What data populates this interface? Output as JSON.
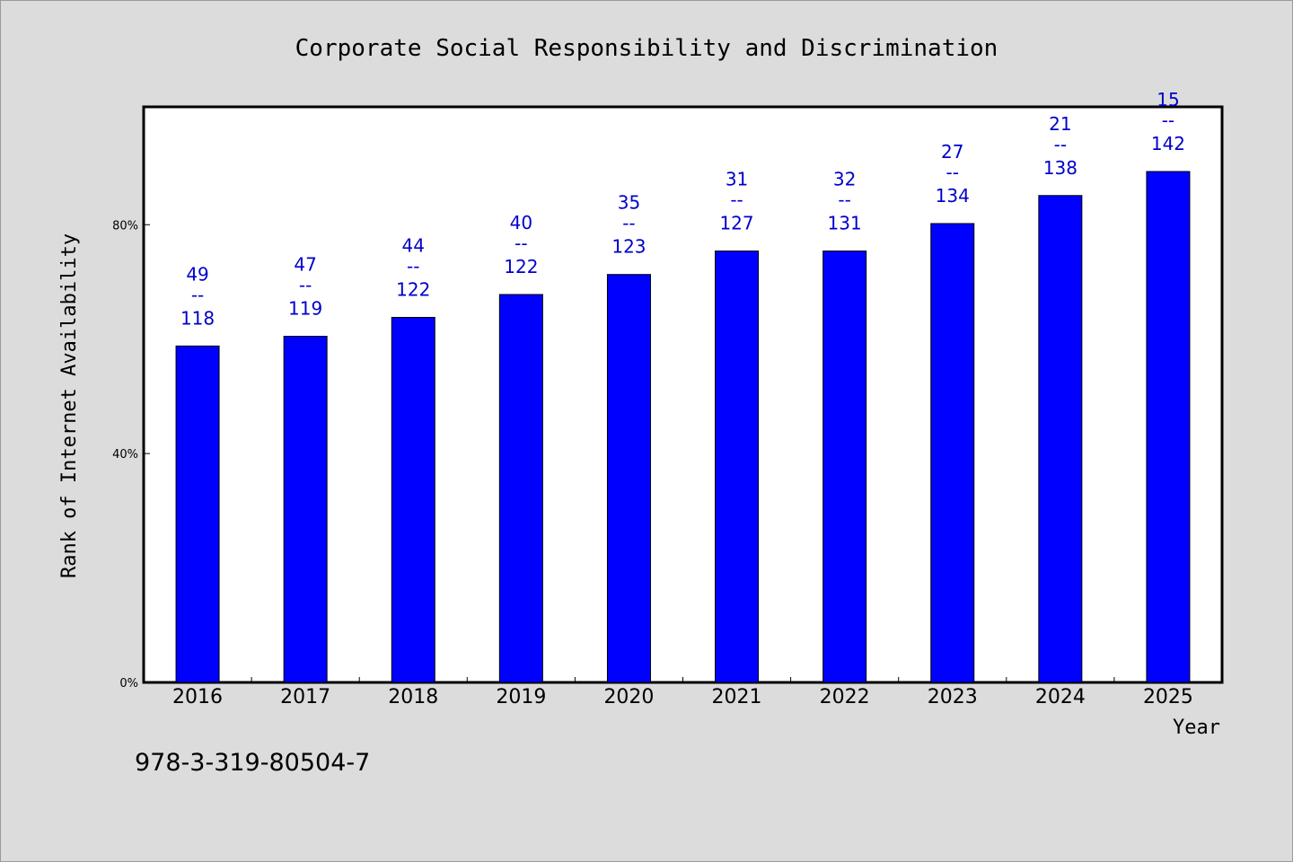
{
  "chart_data": {
    "type": "bar",
    "title": "Corporate Social Responsibility and Discrimination",
    "xlabel": "Year",
    "ylabel": "Rank of Internet Availability",
    "categories": [
      "2016",
      "2017",
      "2018",
      "2019",
      "2020",
      "2021",
      "2022",
      "2023",
      "2024",
      "2025"
    ],
    "values": [
      58.8,
      60.5,
      63.8,
      67.8,
      71.3,
      75.4,
      75.4,
      80.2,
      85.1,
      89.3
    ],
    "bar_labels": [
      {
        "top": "49",
        "sep": "--",
        "bottom": "118"
      },
      {
        "top": "47",
        "sep": "--",
        "bottom": "119"
      },
      {
        "top": "44",
        "sep": "--",
        "bottom": "122"
      },
      {
        "top": "40",
        "sep": "--",
        "bottom": "122"
      },
      {
        "top": "35",
        "sep": "--",
        "bottom": "123"
      },
      {
        "top": "31",
        "sep": "--",
        "bottom": "127"
      },
      {
        "top": "32",
        "sep": "--",
        "bottom": "131"
      },
      {
        "top": "27",
        "sep": "--",
        "bottom": "134"
      },
      {
        "top": "21",
        "sep": "--",
        "bottom": "138"
      },
      {
        "top": "15",
        "sep": "--",
        "bottom": "142"
      }
    ],
    "ylim": [
      0,
      100.6
    ],
    "yticks": [
      0,
      40,
      80
    ],
    "ytick_labels": [
      "0%",
      "40%",
      "80%"
    ],
    "grid": false,
    "bar_color": "#0000ff",
    "label_color": "#0000cc",
    "plot_background": "#ffffff",
    "page_background": "#dcdcdc"
  },
  "footer": {
    "code": "978-3-319-80504-7"
  }
}
